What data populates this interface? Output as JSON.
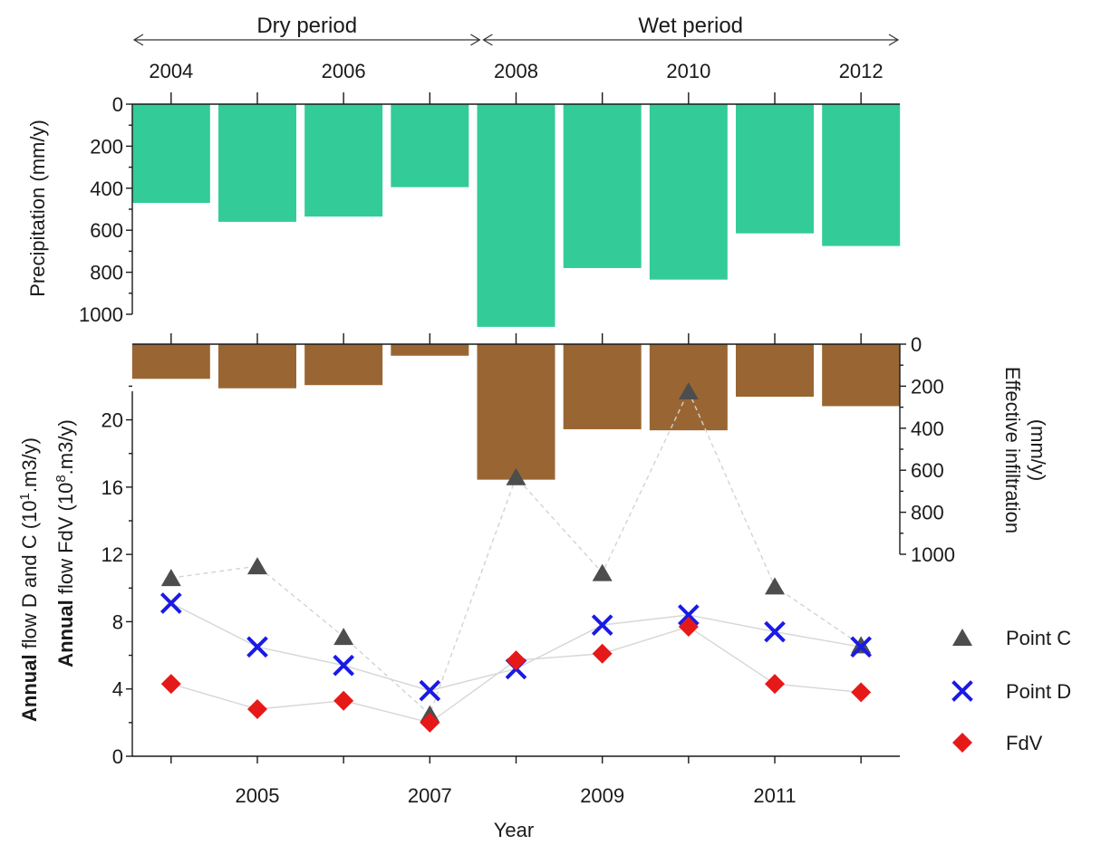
{
  "chart_data": {
    "type": "bar",
    "periods": [
      {
        "label": "Dry period",
        "from": 2003.55,
        "to": 2007.6
      },
      {
        "label": "Wet period",
        "from": 2007.6,
        "to": 2012.45
      }
    ],
    "years": [
      2004,
      2005,
      2006,
      2007,
      2008,
      2009,
      2010,
      2011,
      2012
    ],
    "top_axis_ticks": [
      "2004",
      "2006",
      "2008",
      "2010",
      "2012"
    ],
    "bottom_axis_ticks": [
      "2005",
      "2007",
      "2009",
      "2011"
    ],
    "xlabel": "Year",
    "xlim": [
      2003.55,
      2012.45
    ],
    "precipitation": {
      "ylabel": "Precipitation (mm/y)",
      "ylim": [
        0,
        1000
      ],
      "inverted": true,
      "ticks": [
        "0",
        "200",
        "400",
        "600",
        "800",
        "1000"
      ],
      "color": "#33cc99",
      "values": [
        470,
        560,
        535,
        395,
        1060,
        780,
        835,
        615,
        675
      ]
    },
    "effective_infiltration": {
      "ylabel_lines": [
        "Effective infiltration",
        "(mm/y)"
      ],
      "ylim": [
        0,
        1000
      ],
      "inverted": true,
      "ticks": [
        "0",
        "200",
        "400",
        "600",
        "800",
        "1000"
      ],
      "color": "#996633",
      "values": [
        165,
        210,
        195,
        55,
        645,
        405,
        410,
        250,
        295
      ]
    },
    "flow": {
      "ylabel_1_bold": "Annual",
      "ylabel_1_rest": " flow D and C (10",
      "ylabel_1_sup": "1",
      "ylabel_1_end": ".m3/y)",
      "ylabel_2_bold": "Annual",
      "ylabel_2_rest": " flow FdV (10",
      "ylabel_2_sup": "8",
      "ylabel_2_end": ".m3/y)",
      "ylim": [
        0,
        24.5
      ],
      "ticks": [
        "0",
        "4",
        "8",
        "12",
        "16",
        "20"
      ],
      "series": [
        {
          "name": "Point C",
          "marker": "triangle",
          "color": "#4d4d4d",
          "values": [
            10.6,
            11.3,
            7.1,
            2.5,
            16.6,
            10.9,
            21.7,
            10.1,
            6.6
          ]
        },
        {
          "name": "Point D",
          "marker": "cross",
          "color": "#1a1ae6",
          "values": [
            9.1,
            6.5,
            5.4,
            3.9,
            5.2,
            7.8,
            8.4,
            7.4,
            6.5
          ]
        },
        {
          "name": "FdV",
          "marker": "diamond",
          "color": "#e61919",
          "values": [
            4.3,
            2.8,
            3.3,
            2.0,
            5.7,
            6.1,
            7.7,
            4.3,
            3.8
          ]
        }
      ]
    }
  }
}
